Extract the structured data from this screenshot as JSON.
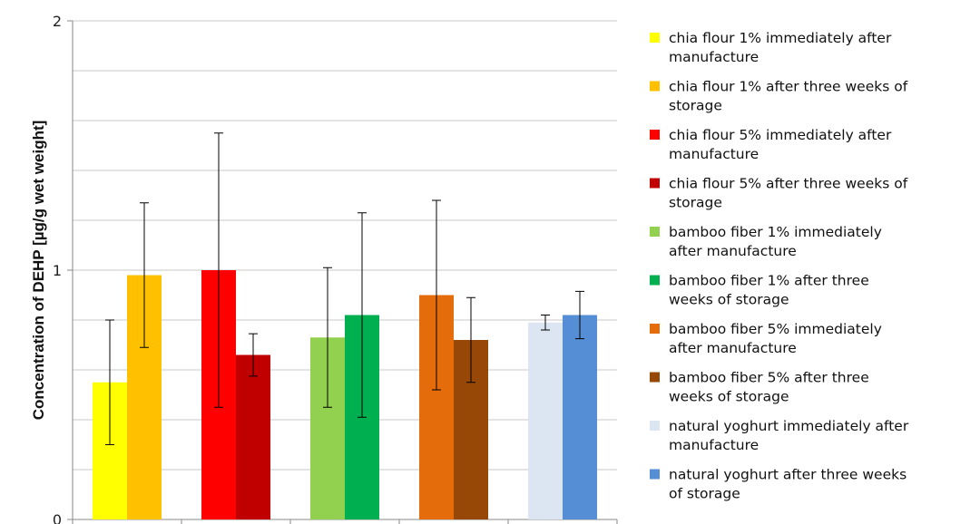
{
  "chart_data": {
    "type": "bar",
    "title": "",
    "xlabel": "",
    "ylabel": "Concentration of DEHP [µg/g wet weight]",
    "ylim": [
      0,
      2
    ],
    "yticks": [
      0,
      1,
      2
    ],
    "grid": true,
    "legend_position": "right",
    "series": [
      {
        "name": "chia flour 1% immediately after manufacture",
        "color": "#ffff00",
        "value": 0.55,
        "err": 0.25
      },
      {
        "name": "chia flour 1% after three weeks of storage",
        "color": "#ffc000",
        "value": 0.98,
        "err": 0.29
      },
      {
        "name": "chia flour 5% immediately after manufacture",
        "color": "#ff0000",
        "value": 1.0,
        "err": 0.55
      },
      {
        "name": "chia flour 5% after three weeks of storage",
        "color": "#c00000",
        "value": 0.66,
        "err": 0.085
      },
      {
        "name": "bamboo fiber 1% immediately after manufacture",
        "color": "#92d050",
        "value": 0.73,
        "err": 0.28
      },
      {
        "name": "bamboo fiber 1% after three weeks of storage",
        "color": "#00b050",
        "value": 0.82,
        "err": 0.41
      },
      {
        "name": "bamboo fiber 5%  immediately after manufacture",
        "color": "#e46c0a",
        "value": 0.9,
        "err": 0.38
      },
      {
        "name": "bamboo fiber 5% after three weeks of storage",
        "color": "#974806",
        "value": 0.72,
        "err": 0.17
      },
      {
        "name": "natural yoghurt  immediately after manufacture",
        "color": "#dce6f2",
        "value": 0.79,
        "err": 0.03
      },
      {
        "name": "natural yoghurt after three weeks of storage",
        "color": "#558ed5",
        "value": 0.82,
        "err": 0.095
      }
    ],
    "legend_lines": [
      [
        "chia flour 1% immediately after",
        "manufacture"
      ],
      [
        "chia flour 1% after three weeks of",
        "storage"
      ],
      [
        "chia flour 5% immediately after",
        "manufacture"
      ],
      [
        "chia flour 5% after three weeks of",
        "storage"
      ],
      [
        "bamboo fiber 1% immediately",
        "after manufacture"
      ],
      [
        "bamboo fiber 1% after three",
        "weeks of storage"
      ],
      [
        "bamboo fiber 5%  immediately",
        "after manufacture"
      ],
      [
        "bamboo fiber 5% after three",
        "weeks of storage"
      ],
      [
        "natural yoghurt  immediately after",
        "manufacture"
      ],
      [
        "natural yoghurt after three weeks",
        "of storage"
      ]
    ]
  }
}
